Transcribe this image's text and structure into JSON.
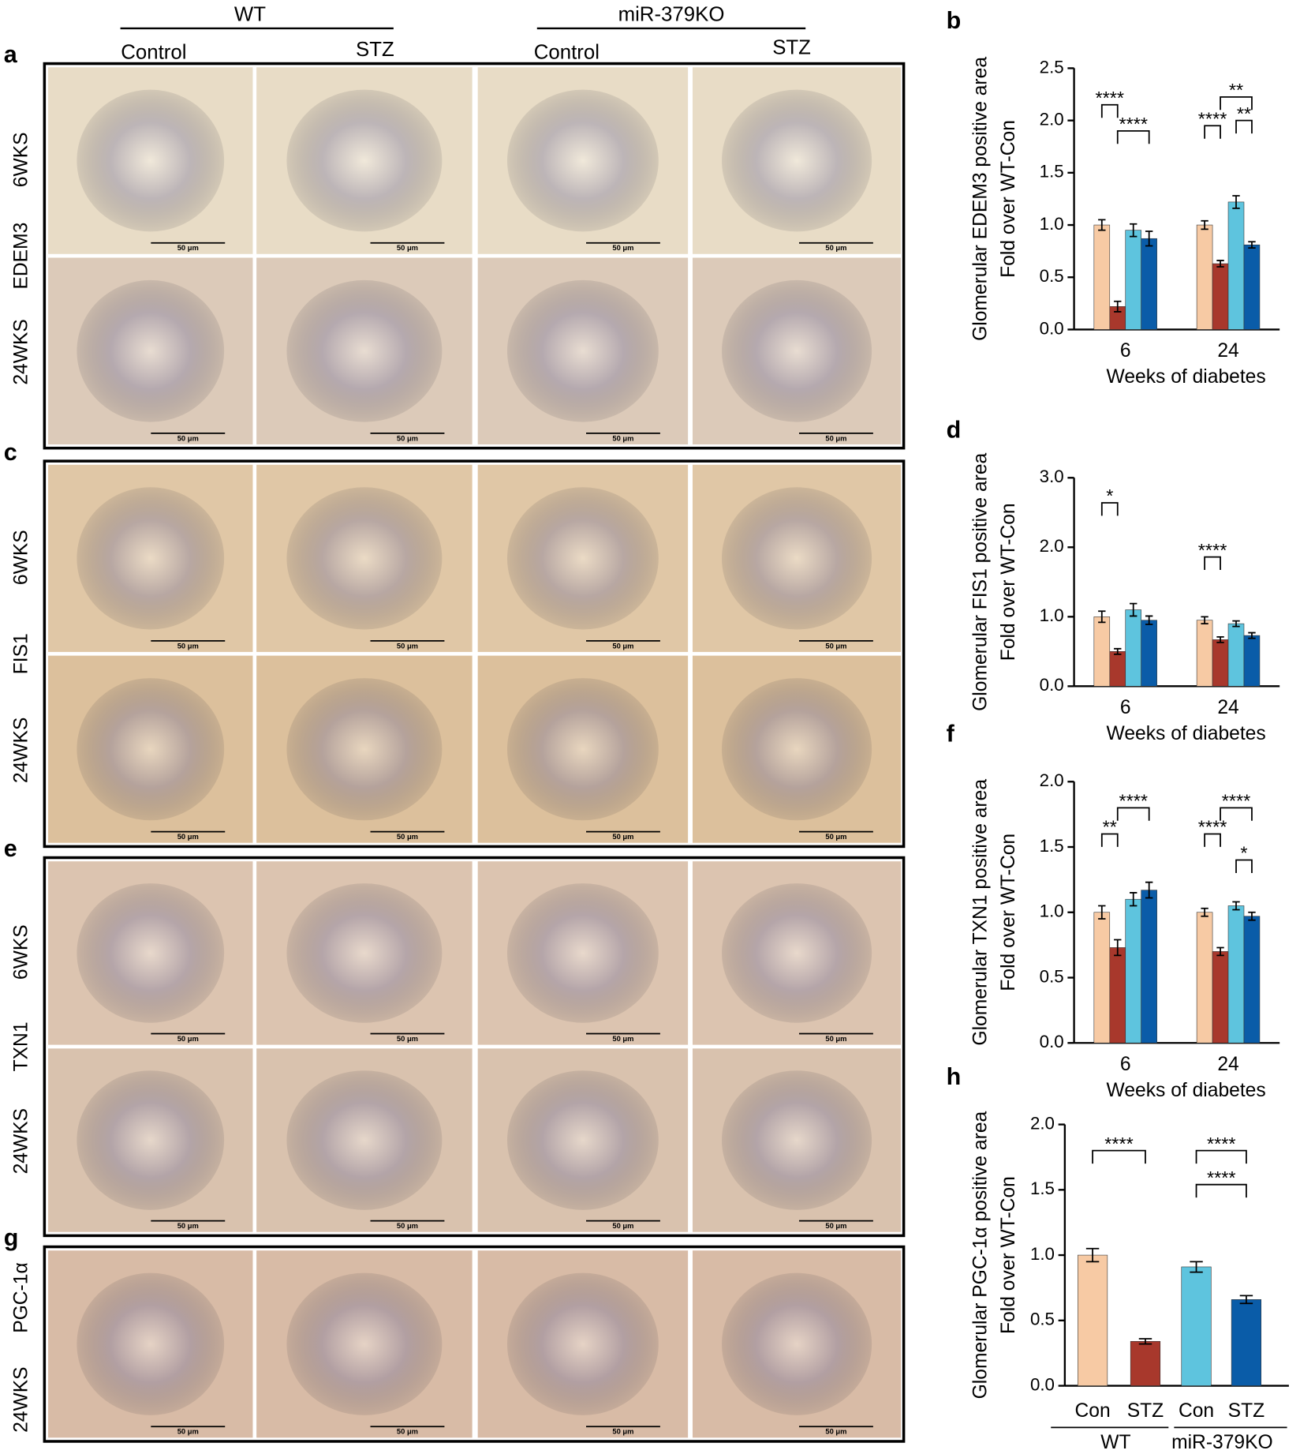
{
  "header": {
    "groups": [
      "WT",
      "miR-379KO"
    ],
    "conditions": [
      "Control",
      "STZ",
      "Control",
      "STZ"
    ]
  },
  "image_blocks": [
    {
      "letter": "a",
      "stain": "EDEM3",
      "rows": [
        "6WKS",
        "24WKS"
      ]
    },
    {
      "letter": "c",
      "stain": "FIS1",
      "rows": [
        "6WKS",
        "24WKS"
      ]
    },
    {
      "letter": "e",
      "stain": "TXN1",
      "rows": [
        "6WKS",
        "24WKS"
      ]
    },
    {
      "letter": "g",
      "stain": "PGC-1α",
      "rows": [
        "24WKS"
      ]
    }
  ],
  "scale_bar_label": "50 μm",
  "chart_data": [
    {
      "type": "grouped_bar",
      "letter": "b",
      "y_label": [
        "Glomerular EDEM3 positive area",
        "Fold over WT-Con"
      ],
      "x_label": "Weeks of diabetes",
      "categories": [
        "6",
        "24"
      ],
      "series": [
        {
          "color": "#f7caa4",
          "values": [
            1.0,
            1.0
          ],
          "errors": [
            0.05,
            0.04
          ]
        },
        {
          "color": "#a8382c",
          "values": [
            0.22,
            0.63
          ],
          "errors": [
            0.05,
            0.03
          ]
        },
        {
          "color": "#5ec4de",
          "values": [
            0.95,
            1.22
          ],
          "errors": [
            0.06,
            0.06
          ]
        },
        {
          "color": "#0a5ca8",
          "values": [
            0.87,
            0.81
          ],
          "errors": [
            0.07,
            0.03
          ]
        }
      ],
      "ylim": [
        0,
        2.5
      ],
      "yticks": [
        {
          "value": 0,
          "label": "0.0"
        },
        0.5,
        {
          "value": 1,
          "label": "1.0"
        },
        1.5,
        {
          "value": 2,
          "label": "2.0"
        },
        2.5
      ],
      "annotations": [
        "****",
        "****",
        "****",
        "**",
        "**"
      ]
    },
    {
      "type": "grouped_bar",
      "letter": "d",
      "y_label": [
        "Glomerular FIS1 positive area",
        "Fold over WT-Con"
      ],
      "x_label": "Weeks of diabetes",
      "categories": [
        "6",
        "24"
      ],
      "series": [
        {
          "color": "#f7caa4",
          "values": [
            1.0,
            0.95
          ],
          "errors": [
            0.08,
            0.05
          ]
        },
        {
          "color": "#a8382c",
          "values": [
            0.5,
            0.67
          ],
          "errors": [
            0.04,
            0.04
          ]
        },
        {
          "color": "#5ec4de",
          "values": [
            1.1,
            0.9
          ],
          "errors": [
            0.09,
            0.04
          ]
        },
        {
          "color": "#0a5ca8",
          "values": [
            0.95,
            0.73
          ],
          "errors": [
            0.06,
            0.04
          ]
        }
      ],
      "ylim": [
        0,
        3
      ],
      "yticks": [
        {
          "value": 0,
          "label": "0.0"
        },
        {
          "value": 1,
          "label": "1.0"
        },
        {
          "value": 2,
          "label": "2.0"
        },
        {
          "value": 3,
          "label": "3.0"
        }
      ],
      "annotations": [
        "*",
        "****"
      ]
    },
    {
      "type": "grouped_bar",
      "letter": "f",
      "y_label": [
        "Glomerular TXN1 positive area",
        "Fold over WT-Con"
      ],
      "x_label": "Weeks of diabetes",
      "categories": [
        "6",
        "24"
      ],
      "series": [
        {
          "color": "#f7caa4",
          "values": [
            1.0,
            1.0
          ],
          "errors": [
            0.05,
            0.03
          ]
        },
        {
          "color": "#a8382c",
          "values": [
            0.73,
            0.7
          ],
          "errors": [
            0.06,
            0.03
          ]
        },
        {
          "color": "#5ec4de",
          "values": [
            1.1,
            1.05
          ],
          "errors": [
            0.05,
            0.03
          ]
        },
        {
          "color": "#0a5ca8",
          "values": [
            1.17,
            0.97
          ],
          "errors": [
            0.06,
            0.03
          ]
        }
      ],
      "ylim": [
        0,
        2
      ],
      "yticks": [
        {
          "value": 0,
          "label": "0.0"
        },
        0.5,
        {
          "value": 1,
          "label": "1.0"
        },
        1.5,
        {
          "value": 2,
          "label": "2.0"
        }
      ],
      "annotations": [
        "**",
        "****",
        "****",
        "****",
        "*"
      ]
    },
    {
      "type": "bar",
      "letter": "h",
      "y_label": [
        "Glomerular PGC-1α positive area",
        "Fold over WT-Con"
      ],
      "categories": [
        "Con",
        "STZ",
        "Con",
        "STZ"
      ],
      "groups": [
        "WT",
        "miR-379KO"
      ],
      "values": [
        1.0,
        0.34,
        0.91,
        0.66
      ],
      "errors": [
        0.05,
        0.02,
        0.04,
        0.03
      ],
      "colors": [
        "#f7caa4",
        "#a8382c",
        "#5ec4de",
        "#0a5ca8"
      ],
      "ylim": [
        0,
        2
      ],
      "yticks": [
        {
          "value": 0,
          "label": "0.0"
        },
        0.5,
        {
          "value": 1,
          "label": "1.0"
        },
        1.5,
        {
          "value": 2,
          "label": "2.0"
        }
      ],
      "annotations": [
        "****",
        "****",
        "****"
      ]
    }
  ]
}
